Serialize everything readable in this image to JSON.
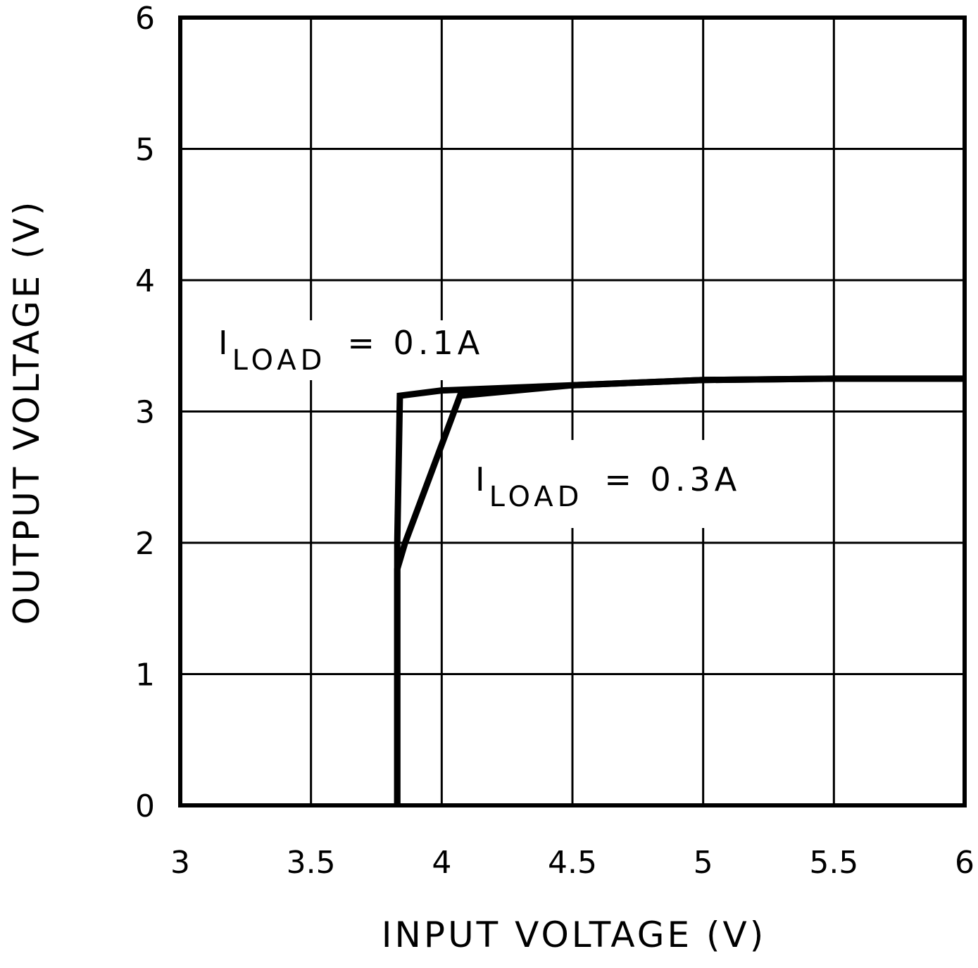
{
  "chart_data": {
    "type": "line",
    "xlabel": "INPUT VOLTAGE (V)",
    "ylabel": "OUTPUT VOLTAGE (V)",
    "xlim": [
      3,
      6
    ],
    "xticks": [
      3,
      3.5,
      4,
      4.5,
      5,
      5.5,
      6
    ],
    "ylim": [
      0,
      6
    ],
    "yticks": [
      0,
      1,
      2,
      3,
      4,
      5,
      6
    ],
    "grid": true,
    "series": [
      {
        "color": "#000000",
        "x": [
          3.83,
          3.83,
          3.84,
          4,
          4.5,
          5,
          5.5,
          6
        ],
        "values": [
          0,
          2,
          3.12,
          3.16,
          3.2,
          3.24,
          3.25,
          3.25
        ]
      },
      {
        "color": "#000000",
        "x": [
          3.83,
          3.83,
          3.86,
          4.07,
          4.5,
          5,
          5.5,
          6
        ],
        "values": [
          0,
          1.8,
          2,
          3.12,
          3.2,
          3.24,
          3.25,
          3.25
        ]
      }
    ],
    "annotations": [
      {
        "text": "I",
        "sub": "LOAD",
        "rest": "= 0.1A"
      },
      {
        "text": "I",
        "sub": "LOAD",
        "rest": "= 0.3A"
      }
    ]
  }
}
